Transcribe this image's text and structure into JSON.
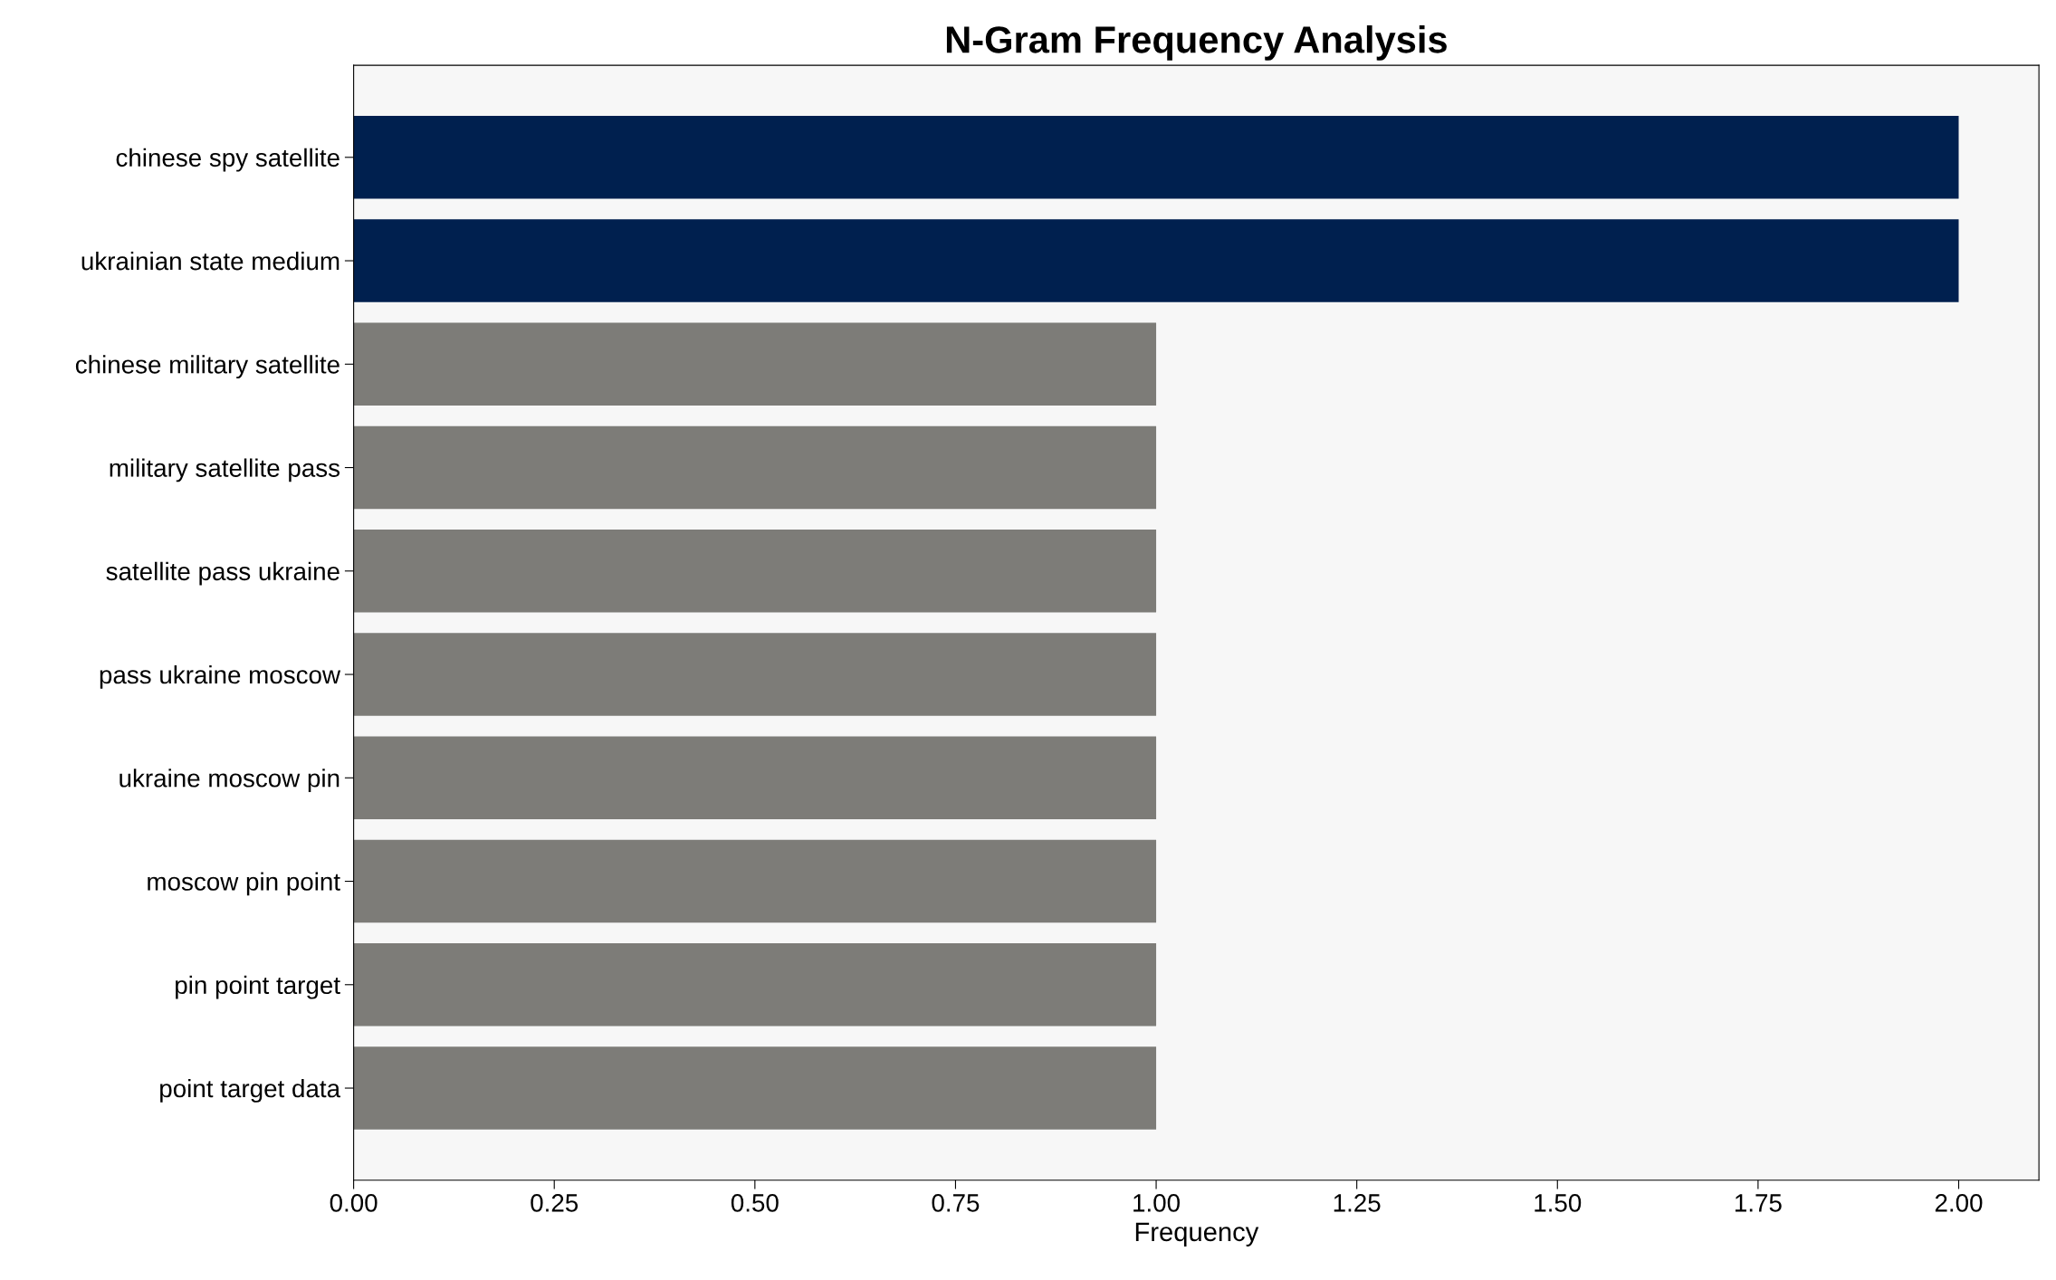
{
  "chart_data": {
    "type": "bar",
    "orientation": "horizontal",
    "title": "N-Gram Frequency Analysis",
    "xlabel": "Frequency",
    "categories": [
      "chinese spy satellite",
      "ukrainian state medium",
      "chinese military satellite",
      "military satellite pass",
      "satellite pass ukraine",
      "pass ukraine moscow",
      "ukraine moscow pin",
      "moscow pin point",
      "pin point target",
      "point target data"
    ],
    "values": [
      2,
      2,
      1,
      1,
      1,
      1,
      1,
      1,
      1,
      1
    ],
    "colors": [
      "#00204f",
      "#00204f",
      "#7d7c78",
      "#7d7c78",
      "#7d7c78",
      "#7d7c78",
      "#7d7c78",
      "#7d7c78",
      "#7d7c78",
      "#7d7c78"
    ],
    "xlim": [
      0,
      2.1
    ],
    "xticks": [
      {
        "value": 0,
        "label": "0.00"
      },
      {
        "value": 0.25,
        "label": "0.25"
      },
      {
        "value": 0.5,
        "label": "0.50"
      },
      {
        "value": 0.75,
        "label": "0.75"
      },
      {
        "value": 1,
        "label": "1.00"
      },
      {
        "value": 1.25,
        "label": "1.25"
      },
      {
        "value": 1.5,
        "label": "1.50"
      },
      {
        "value": 1.75,
        "label": "1.75"
      },
      {
        "value": 2,
        "label": "2.00"
      }
    ],
    "grid": false
  }
}
